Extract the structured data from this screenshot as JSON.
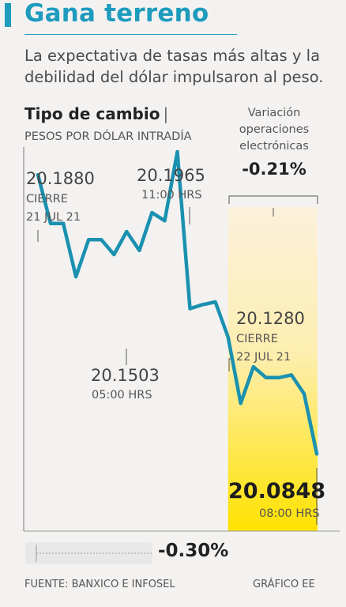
{
  "header": {
    "title": "Gana terreno",
    "subtitle": "La expectativa de tasas más altas y la debilidad del dólar impulsaron al peso."
  },
  "chart_data": {
    "type": "line",
    "title": "Tipo de cambio",
    "title_separator": "|",
    "subtitle": "PESOS POR DÓLAR INTRADÍA",
    "ylim": [
      20.07,
      20.2
    ],
    "series": [
      {
        "values": [
          20.188,
          20.17,
          20.17,
          20.1503,
          20.164,
          20.164,
          20.1585,
          20.167,
          20.16,
          20.174,
          20.171,
          20.1965,
          20.1385,
          20.14,
          20.141,
          20.128,
          20.1035,
          20.117,
          20.113,
          20.113,
          20.114,
          20.107,
          20.0848
        ]
      }
    ],
    "highlight_start_index": 15,
    "annotations": {
      "open": {
        "value": "20.1880",
        "label": "CIERRE",
        "date": "21 JUL 21"
      },
      "high": {
        "value": "20.1965",
        "time": "11:00 HRS"
      },
      "low": {
        "value": "20.1503",
        "time": "05:00 HRS"
      },
      "close": {
        "value": "20.1280",
        "label": "CIERRE",
        "date": "22 JUL 21"
      },
      "last": {
        "value": "20.0848",
        "time": "08:00 HRS"
      }
    },
    "electronic_variation": {
      "label": "Variación operaciones electrónicas",
      "value": "-0.21%"
    },
    "total_variation": "-0.30%",
    "colors": {
      "line": "#1a91b0",
      "highlight_top": "#fbf1dc",
      "highlight_bottom": "#ffe200",
      "title": "#1e9bbd"
    }
  },
  "footer": {
    "source": "FUENTE: BANXICO E INFOSEL",
    "credit": "GRÁFICO EE"
  }
}
